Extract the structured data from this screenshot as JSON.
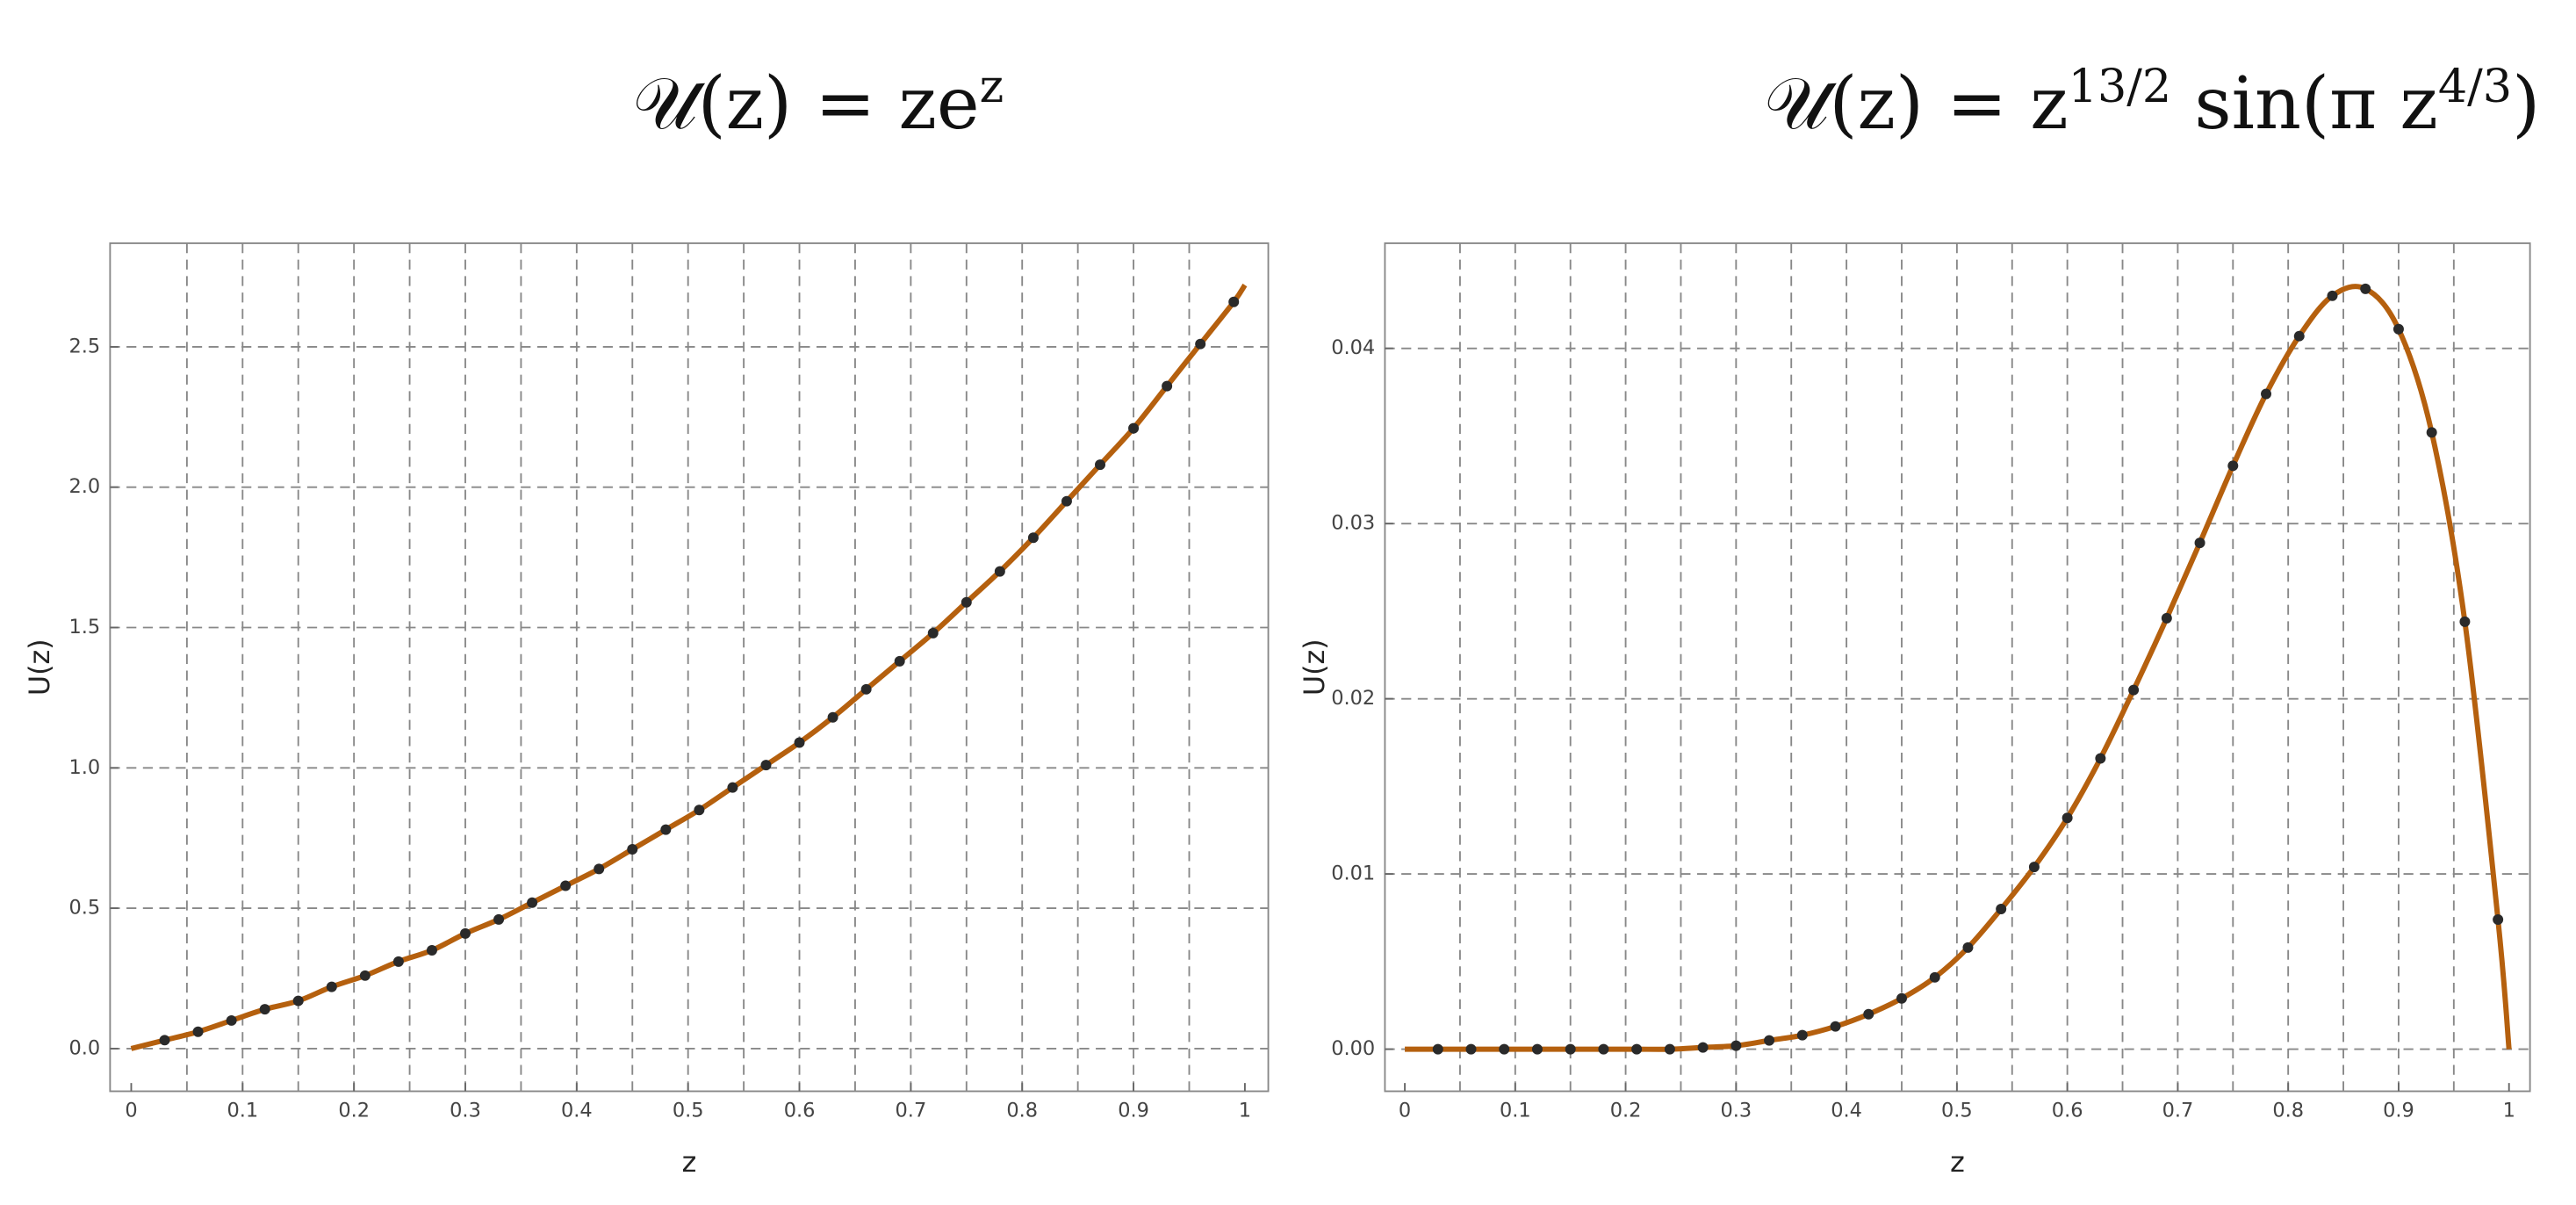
{
  "chart_data": [
    {
      "type": "line",
      "title": [
        {
          "text": "𝒰(z) = ze"
        },
        {
          "text": "z",
          "sup": true
        }
      ],
      "x_label": "z",
      "y_label": "U(z)",
      "xlim": [
        -0.019,
        1.021
      ],
      "ylim": [
        -0.152,
        2.869
      ],
      "xticks": [
        0,
        0.1,
        0.2,
        0.3,
        0.4,
        0.5,
        0.6,
        0.7,
        0.8,
        0.9,
        1
      ],
      "yticks": [
        {
          "value": 0,
          "label": "0.0"
        },
        0.5,
        {
          "value": 1,
          "label": "1.0"
        },
        1.5,
        {
          "value": 2,
          "label": "2.0"
        },
        2.5
      ],
      "xgrid": [
        0.05,
        0.1,
        0.15,
        0.2,
        0.25,
        0.3,
        0.35,
        0.4,
        0.45,
        0.5,
        0.55,
        0.6,
        0.65,
        0.7,
        0.75,
        0.8,
        0.85,
        0.9,
        0.95
      ],
      "grid": true,
      "curve": {
        "color": "#b5600e",
        "x": [
          0,
          0.03,
          0.06,
          0.09,
          0.12,
          0.15,
          0.18,
          0.21,
          0.24,
          0.27,
          0.3,
          0.33,
          0.36,
          0.39,
          0.42,
          0.45,
          0.48,
          0.51,
          0.54,
          0.57,
          0.6,
          0.63,
          0.66,
          0.69,
          0.72,
          0.75,
          0.78,
          0.81,
          0.84,
          0.87,
          0.9,
          0.93,
          0.96,
          0.99,
          1
        ],
        "values": [
          0,
          0.03,
          0.06,
          0.1,
          0.14,
          0.17,
          0.22,
          0.26,
          0.31,
          0.35,
          0.41,
          0.46,
          0.52,
          0.58,
          0.64,
          0.71,
          0.78,
          0.85,
          0.93,
          1.01,
          1.09,
          1.18,
          1.28,
          1.38,
          1.48,
          1.59,
          1.7,
          1.82,
          1.95,
          2.08,
          2.21,
          2.36,
          2.51,
          2.66,
          2.72
        ]
      },
      "points": {
        "color": "#2a2a2a",
        "x": [
          0.03,
          0.06,
          0.09,
          0.12,
          0.15,
          0.18,
          0.21,
          0.24,
          0.27,
          0.3,
          0.33,
          0.36,
          0.39,
          0.42,
          0.45,
          0.48,
          0.51,
          0.54,
          0.57,
          0.6,
          0.63,
          0.66,
          0.69,
          0.72,
          0.75,
          0.78,
          0.81,
          0.84,
          0.87,
          0.9,
          0.93,
          0.96,
          0.99
        ],
        "values": [
          0.03,
          0.06,
          0.1,
          0.14,
          0.17,
          0.22,
          0.26,
          0.31,
          0.35,
          0.41,
          0.46,
          0.52,
          0.58,
          0.64,
          0.71,
          0.78,
          0.85,
          0.93,
          1.01,
          1.09,
          1.18,
          1.28,
          1.38,
          1.48,
          1.59,
          1.7,
          1.82,
          1.95,
          2.08,
          2.21,
          2.36,
          2.51,
          2.66
        ]
      }
    },
    {
      "type": "line",
      "title": [
        {
          "text": "𝒰(z) = z"
        },
        {
          "text": "13/2",
          "sup": true
        },
        {
          "text": " sin(π z"
        },
        {
          "text": "4/3",
          "sup": true
        },
        {
          "text": ")"
        }
      ],
      "x_label": "z",
      "y_label": "U(z)",
      "xlim": [
        -0.018,
        1.019
      ],
      "ylim": [
        -0.0024,
        0.046
      ],
      "xticks": [
        0,
        0.1,
        0.2,
        0.3,
        0.4,
        0.5,
        0.6,
        0.7,
        0.8,
        0.9,
        1
      ],
      "yticks": [
        {
          "value": 0,
          "label": "0.00"
        },
        0.01,
        0.02,
        0.03,
        0.04
      ],
      "xgrid": [
        0.05,
        0.1,
        0.15,
        0.2,
        0.25,
        0.3,
        0.35,
        0.4,
        0.45,
        0.5,
        0.55,
        0.6,
        0.65,
        0.7,
        0.75,
        0.8,
        0.85,
        0.9,
        0.95
      ],
      "grid": true,
      "curve": {
        "color": "#b5600e",
        "x": [
          0,
          0.03,
          0.06,
          0.09,
          0.12,
          0.15,
          0.18,
          0.21,
          0.24,
          0.27,
          0.3,
          0.33,
          0.36,
          0.39,
          0.42,
          0.45,
          0.48,
          0.51,
          0.54,
          0.57,
          0.6,
          0.63,
          0.66,
          0.69,
          0.72,
          0.75,
          0.78,
          0.81,
          0.84,
          0.87,
          0.9,
          0.93,
          0.96,
          0.99,
          1
        ],
        "values": [
          0,
          0,
          0,
          0,
          0,
          0,
          0,
          0,
          0,
          0.0001,
          0.0002,
          0.0005,
          0.0008,
          0.0013,
          0.002,
          0.0029,
          0.0041,
          0.0058,
          0.008,
          0.0104,
          0.0132,
          0.0166,
          0.0205,
          0.0246,
          0.0289,
          0.0333,
          0.0374,
          0.0407,
          0.043,
          0.0434,
          0.0411,
          0.0352,
          0.0244,
          0.0074,
          0
        ]
      },
      "points": {
        "color": "#2a2a2a",
        "x": [
          0.03,
          0.06,
          0.09,
          0.12,
          0.15,
          0.18,
          0.21,
          0.24,
          0.27,
          0.3,
          0.33,
          0.36,
          0.39,
          0.42,
          0.45,
          0.48,
          0.51,
          0.54,
          0.57,
          0.6,
          0.63,
          0.66,
          0.69,
          0.72,
          0.75,
          0.78,
          0.81,
          0.84,
          0.87,
          0.9,
          0.93,
          0.96,
          0.99
        ],
        "values": [
          0,
          0,
          0,
          0,
          0,
          0,
          0,
          0,
          0.0001,
          0.0002,
          0.0005,
          0.0008,
          0.0013,
          0.002,
          0.0029,
          0.0041,
          0.0058,
          0.008,
          0.0104,
          0.0132,
          0.0166,
          0.0205,
          0.0246,
          0.0289,
          0.0333,
          0.0374,
          0.0407,
          0.043,
          0.0434,
          0.0411,
          0.0352,
          0.0244,
          0.0074
        ]
      }
    }
  ]
}
